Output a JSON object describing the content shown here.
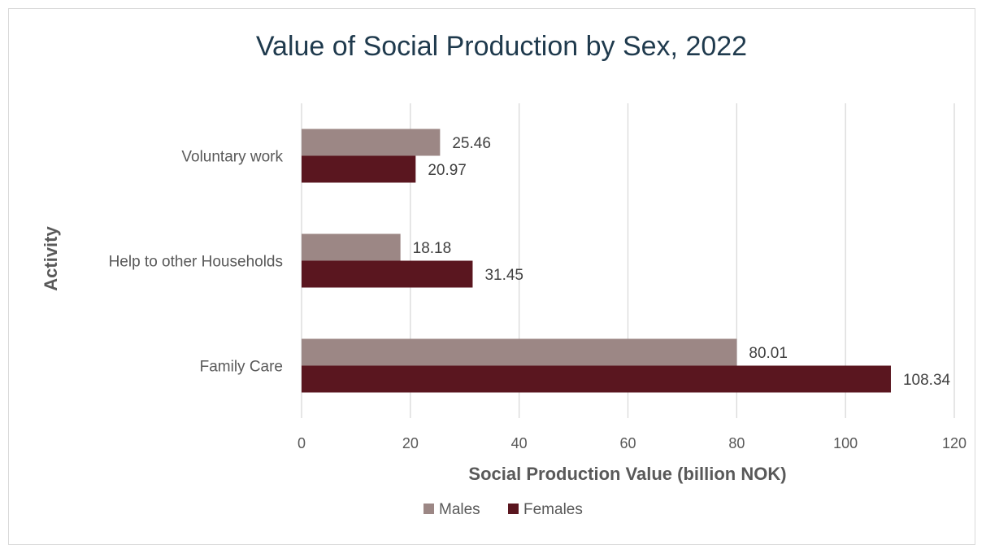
{
  "chart_data": {
    "type": "bar",
    "orientation": "horizontal",
    "title": "Value of Social Production by Sex, 2022",
    "xlabel": "Social Production Value (billion NOK)",
    "ylabel": "Activity",
    "categories": [
      "Voluntary work",
      "Help to other Households",
      "Family Care"
    ],
    "series": [
      {
        "name": "Males",
        "values": [
          25.46,
          18.18,
          80.01
        ],
        "color": "#9c8785"
      },
      {
        "name": "Females",
        "values": [
          20.97,
          31.45,
          108.34
        ],
        "color": "#5a161f"
      }
    ],
    "xlim": [
      0,
      120
    ],
    "xticks": [
      "0",
      "20",
      "40",
      "60",
      "80",
      "100",
      "120"
    ],
    "grid": true,
    "legend_position": "bottom"
  }
}
